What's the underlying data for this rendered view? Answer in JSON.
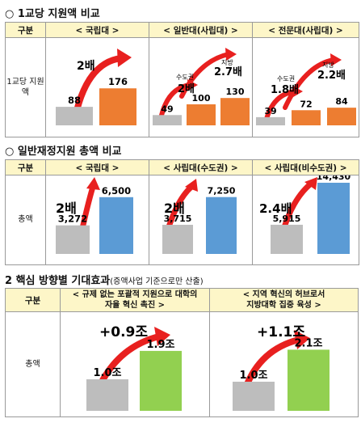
{
  "section1": {
    "title": "○ 1교당 지원액 비교",
    "header_label": "구분",
    "row_label": "1교당 지원액",
    "chart_data": [
      {
        "type": "bar",
        "title": "< 국립대 >",
        "values": [
          88,
          176
        ],
        "value_labels": [
          "88",
          "176"
        ],
        "colors": [
          "#bdbdbd",
          "#ed7d31"
        ],
        "annotations": [
          {
            "text": "2배"
          }
        ]
      },
      {
        "type": "bar",
        "title": "< 일반대(사립대) >",
        "values": [
          49,
          100,
          130
        ],
        "value_labels": [
          "49",
          "100",
          "130"
        ],
        "colors": [
          "#bdbdbd",
          "#ed7d31",
          "#ed7d31"
        ],
        "annotations": [
          {
            "text": "수도권"
          },
          {
            "text": "2배"
          },
          {
            "text": "지방"
          },
          {
            "text": "2.7배"
          }
        ]
      },
      {
        "type": "bar",
        "title": "< 전문대(사립대) >",
        "values": [
          39,
          72,
          84
        ],
        "value_labels": [
          "39",
          "72",
          "84"
        ],
        "colors": [
          "#bdbdbd",
          "#ed7d31",
          "#ed7d31"
        ],
        "annotations": [
          {
            "text": "수도권"
          },
          {
            "text": "1.8배"
          },
          {
            "text": "지방"
          },
          {
            "text": "2.2배"
          }
        ]
      }
    ]
  },
  "section2": {
    "title": "○ 일반재정지원 총액 비교",
    "header_label": "구분",
    "row_label": "총액",
    "chart_data": [
      {
        "type": "bar",
        "title": "< 국립대 >",
        "values": [
          3272,
          6500
        ],
        "value_labels": [
          "3,272",
          "6,500"
        ],
        "colors": [
          "#bdbdbd",
          "#5b9bd5"
        ],
        "annotations": [
          {
            "text": "2배"
          }
        ]
      },
      {
        "type": "bar",
        "title": "< 사립대(수도권) >",
        "values": [
          3715,
          7250
        ],
        "value_labels": [
          "3,715",
          "7,250"
        ],
        "colors": [
          "#bdbdbd",
          "#5b9bd5"
        ],
        "annotations": [
          {
            "text": "2배"
          }
        ]
      },
      {
        "type": "bar",
        "title": "< 사립대(비수도권) >",
        "values": [
          5915,
          14430
        ],
        "value_labels": [
          "5,915",
          "14,430"
        ],
        "colors": [
          "#bdbdbd",
          "#5b9bd5"
        ],
        "annotations": [
          {
            "text": "2.4배"
          }
        ]
      }
    ]
  },
  "section3": {
    "title_main": "2  핵심 방향별 기대효과",
    "title_sub": "(증액사업 기준으로만 산출)",
    "header_label": "구분",
    "row_label": "총액",
    "col1_title_line1": "< 규제 없는 포괄적 지원으로 대학의",
    "col1_title_line2": "자율 혁신 촉진 >",
    "col2_title_line1": "< 지역 혁신의 허브로서",
    "col2_title_line2": "지방대학 집중 육성 >",
    "chart_data": [
      {
        "type": "bar",
        "values": [
          1.0,
          1.9
        ],
        "value_labels": [
          "1.0조",
          "1.9조"
        ],
        "colors": [
          "#bdbdbd",
          "#92d050"
        ],
        "annotations": [
          {
            "text": "+0.9조"
          }
        ]
      },
      {
        "type": "bar",
        "values": [
          1.0,
          2.1
        ],
        "value_labels": [
          "1.0조",
          "2.1조"
        ],
        "colors": [
          "#bdbdbd",
          "#92d050"
        ],
        "annotations": [
          {
            "text": "+1.1조"
          }
        ]
      }
    ]
  },
  "colors": {
    "header_bg": "#fdf6c8",
    "arrow": "#e8201f",
    "grey_bar": "#bdbdbd",
    "orange_bar": "#ed7d31",
    "blue_bar": "#5b9bd5",
    "green_bar": "#92d050"
  }
}
